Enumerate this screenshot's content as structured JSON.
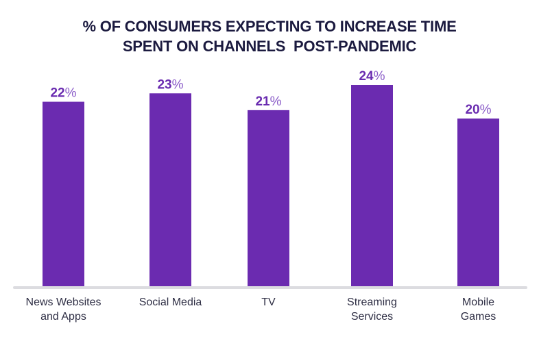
{
  "chart_data": {
    "type": "bar",
    "title": "% OF CONSUMERS EXPECTING TO INCREASE TIME SPENT ON CHANNELS  POST-PANDEMIC",
    "title_lines": [
      "% OF CONSUMERS EXPECTING TO INCREASE TIME",
      "SPENT ON CHANNELS  POST-PANDEMIC"
    ],
    "categories": [
      "News Websites and Apps",
      "Social Media",
      "TV",
      "Streaming Services",
      "Mobile Games"
    ],
    "category_lines": [
      [
        "News Websites",
        "and Apps"
      ],
      [
        "Social Media"
      ],
      [
        "TV"
      ],
      [
        "Streaming",
        "Services"
      ],
      [
        "Mobile",
        "Games"
      ]
    ],
    "values": [
      22,
      23,
      21,
      24,
      20
    ],
    "value_labels": [
      "22",
      "23",
      "21",
      "24",
      "20"
    ],
    "value_suffix": "%",
    "xlabel": "",
    "ylabel": "",
    "ylim": [
      0,
      24.9
    ],
    "grid": false,
    "legend": "none",
    "bar_color": "#6b2bb0",
    "baseline_color": "#dcdce0"
  }
}
